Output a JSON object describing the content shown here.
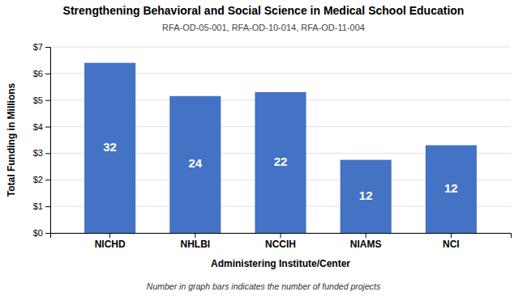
{
  "chart_data": {
    "type": "bar",
    "title": "Strengthening Behavioral and Social Science in Medical School Education",
    "subtitle": "RFA-OD-05-001, RFA-OD-10-014, RFA-OD-11-004",
    "categories": [
      "NICHD",
      "NHLBI",
      "NCCIH",
      "NIAMS",
      "NCI"
    ],
    "values": [
      6.4,
      5.15,
      5.3,
      2.75,
      3.3
    ],
    "counts": [
      32,
      24,
      22,
      12,
      12
    ],
    "color": "#4472C4",
    "xlabel": "Administering Institute/Center",
    "ylabel": "Total Funding in Millions",
    "footnote": "Number in graph bars indicates the number of funded projects",
    "ylim": [
      0,
      7
    ],
    "yticks": [
      {
        "value": 0,
        "label": "$0"
      },
      {
        "value": 1,
        "label": "$1"
      },
      {
        "value": 2,
        "label": "$2"
      },
      {
        "value": 3,
        "label": "$3"
      },
      {
        "value": 4,
        "label": "$4"
      },
      {
        "value": 5,
        "label": "$5"
      },
      {
        "value": 6,
        "label": "$6"
      },
      {
        "value": 7,
        "label": "$7"
      }
    ],
    "grid": true
  }
}
